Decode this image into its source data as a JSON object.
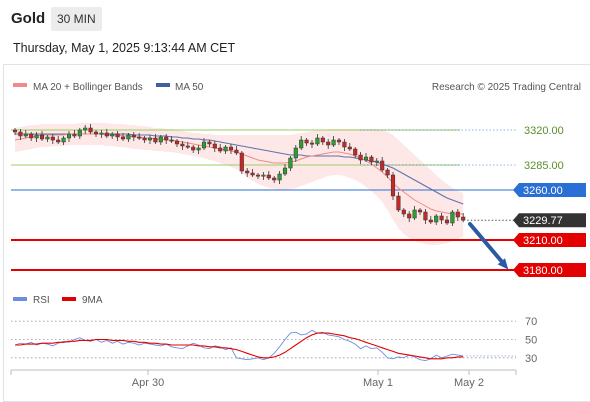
{
  "header": {
    "title": "Gold",
    "timeframe": "30 MIN",
    "timestamp": "Thursday, May 1, 2025 9:13:44 AM CET"
  },
  "legend": {
    "ma20": "MA 20 + Bollinger Bands",
    "ma50": "MA 50",
    "rsi": "RSI",
    "ma9": "9MA"
  },
  "attribution": "Research © 2025 Trading Central",
  "colors": {
    "ma20": "#f08a8a",
    "ma50": "#3f5f9e",
    "band": "#fde3e3",
    "resistance": "#9ccc65",
    "pivot": "#2a6fd6",
    "support": "#e30000",
    "last": "#333333",
    "up": "#2e9d32",
    "down": "#c62828",
    "arrow": "#2b5aa3",
    "rsi": "#6b8ee0",
    "rsi_ma": "#e30000"
  },
  "chart_data": {
    "type": "candlestick",
    "ylim": [
      3160,
      3340
    ],
    "x_labels": [
      "Apr 30",
      "May 1",
      "May 2"
    ],
    "levels": [
      {
        "label": "3320.00",
        "value": 3320,
        "kind": "resistance",
        "style": "solid"
      },
      {
        "label": "3285.00",
        "value": 3285,
        "kind": "resistance",
        "style": "solid"
      },
      {
        "label": "3260.00",
        "value": 3260,
        "kind": "pivot",
        "style": "solid"
      },
      {
        "label": "3229.77",
        "value": 3229.77,
        "kind": "last",
        "style": "dotted"
      },
      {
        "label": "3210.00",
        "value": 3210,
        "kind": "support",
        "style": "solid"
      },
      {
        "label": "3180.00",
        "value": 3180,
        "kind": "support",
        "style": "solid"
      }
    ],
    "close": [
      3318,
      3314,
      3316,
      3312,
      3315,
      3311,
      3313,
      3310,
      3308,
      3312,
      3316,
      3314,
      3320,
      3322,
      3318,
      3316,
      3317,
      3314,
      3316,
      3313,
      3311,
      3315,
      3313,
      3312,
      3310,
      3312,
      3308,
      3313,
      3310,
      3309,
      3306,
      3304,
      3303,
      3300,
      3302,
      3308,
      3306,
      3302,
      3299,
      3303,
      3300,
      3297,
      3279,
      3277,
      3275,
      3274,
      3275,
      3272,
      3270,
      3276,
      3282,
      3292,
      3302,
      3310,
      3307,
      3306,
      3312,
      3308,
      3305,
      3310,
      3308,
      3303,
      3301,
      3295,
      3290,
      3293,
      3288,
      3289,
      3280,
      3275,
      3254,
      3240,
      3236,
      3232,
      3240,
      3238,
      3230,
      3228,
      3234,
      3230,
      3227,
      3238,
      3233,
      3229.77
    ],
    "ma20": [
      3310,
      3311,
      3312,
      3313,
      3314,
      3315,
      3315,
      3315,
      3315,
      3315,
      3316,
      3316,
      3316,
      3316,
      3316,
      3316,
      3316,
      3315,
      3315,
      3315,
      3314,
      3314,
      3313,
      3313,
      3312,
      3312,
      3311,
      3311,
      3310,
      3310,
      3309,
      3308,
      3307,
      3306,
      3305,
      3304,
      3303,
      3302,
      3301,
      3300,
      3299,
      3298,
      3296,
      3294,
      3292,
      3290,
      3289,
      3288,
      3287,
      3287,
      3287,
      3288,
      3289,
      3291,
      3293,
      3294,
      3295,
      3296,
      3297,
      3298,
      3298,
      3297,
      3296,
      3294,
      3292,
      3289,
      3286,
      3282,
      3278,
      3273,
      3267,
      3262,
      3258,
      3254,
      3250,
      3247,
      3244,
      3241,
      3239,
      3238,
      3237,
      3236,
      3236,
      3236
    ],
    "bb_upper": [
      3322,
      3323,
      3324,
      3325,
      3325,
      3326,
      3326,
      3326,
      3326,
      3326,
      3326,
      3326,
      3327,
      3327,
      3327,
      3327,
      3327,
      3327,
      3326,
      3326,
      3326,
      3325,
      3325,
      3324,
      3324,
      3323,
      3322,
      3322,
      3321,
      3321,
      3320,
      3319,
      3318,
      3317,
      3317,
      3316,
      3316,
      3315,
      3315,
      3315,
      3315,
      3315,
      3315,
      3315,
      3315,
      3315,
      3315,
      3315,
      3315,
      3315,
      3315,
      3315,
      3316,
      3317,
      3318,
      3319,
      3320,
      3320,
      3321,
      3321,
      3321,
      3321,
      3321,
      3321,
      3321,
      3321,
      3321,
      3321,
      3320,
      3318,
      3315,
      3310,
      3305,
      3300,
      3295,
      3290,
      3285,
      3280,
      3275,
      3270,
      3266,
      3262,
      3259,
      3257
    ],
    "bb_lower": [
      3298,
      3299,
      3300,
      3301,
      3302,
      3303,
      3303,
      3304,
      3304,
      3304,
      3305,
      3305,
      3305,
      3305,
      3305,
      3305,
      3305,
      3304,
      3304,
      3303,
      3303,
      3302,
      3301,
      3301,
      3300,
      3300,
      3299,
      3299,
      3298,
      3298,
      3297,
      3296,
      3295,
      3294,
      3293,
      3292,
      3290,
      3289,
      3287,
      3285,
      3283,
      3281,
      3277,
      3273,
      3269,
      3266,
      3264,
      3262,
      3261,
      3260,
      3260,
      3261,
      3262,
      3264,
      3266,
      3268,
      3270,
      3272,
      3274,
      3275,
      3275,
      3274,
      3272,
      3270,
      3267,
      3263,
      3259,
      3254,
      3248,
      3240,
      3230,
      3222,
      3216,
      3212,
      3209,
      3207,
      3206,
      3205,
      3205,
      3206,
      3207,
      3209,
      3211,
      3214
    ],
    "ma50": [
      3316,
      3316,
      3316,
      3316,
      3316,
      3316,
      3316,
      3316,
      3316,
      3316,
      3316,
      3316,
      3316,
      3316,
      3316,
      3316,
      3316,
      3316,
      3316,
      3316,
      3316,
      3316,
      3315,
      3315,
      3315,
      3315,
      3314,
      3314,
      3314,
      3313,
      3313,
      3312,
      3312,
      3311,
      3311,
      3310,
      3310,
      3309,
      3308,
      3307,
      3306,
      3305,
      3304,
      3303,
      3302,
      3301,
      3300,
      3299,
      3298,
      3297,
      3296,
      3295,
      3295,
      3295,
      3294,
      3294,
      3294,
      3294,
      3294,
      3294,
      3294,
      3293,
      3293,
      3292,
      3291,
      3290,
      3289,
      3288,
      3286,
      3284,
      3282,
      3279,
      3276,
      3273,
      3270,
      3267,
      3264,
      3261,
      3258,
      3255,
      3252,
      3250,
      3248,
      3246
    ],
    "rsi": {
      "ticks": [
        "70",
        "50",
        "30"
      ],
      "ylim": [
        20,
        80
      ],
      "rsi": [
        44,
        46,
        45,
        47,
        44,
        46,
        45,
        43,
        46,
        48,
        47,
        50,
        52,
        49,
        48,
        50,
        47,
        49,
        46,
        48,
        45,
        47,
        46,
        44,
        46,
        45,
        44,
        43,
        45,
        42,
        41,
        40,
        43,
        46,
        44,
        41,
        40,
        43,
        42,
        39,
        41,
        30,
        29,
        28,
        29,
        30,
        28,
        30,
        35,
        42,
        50,
        57,
        58,
        55,
        56,
        60,
        57,
        58,
        55,
        54,
        53,
        50,
        48,
        45,
        40,
        43,
        40,
        41,
        36,
        30,
        29,
        31,
        30,
        33,
        31,
        28,
        27,
        29,
        33,
        30,
        32,
        34,
        33,
        32
      ],
      "ma9": [
        44,
        44,
        45,
        45,
        45,
        46,
        46,
        46,
        47,
        47,
        48,
        48,
        49,
        49,
        49,
        50,
        50,
        50,
        49,
        49,
        49,
        48,
        48,
        47,
        47,
        46,
        46,
        45,
        45,
        44,
        44,
        44,
        44,
        44,
        43,
        43,
        42,
        42,
        41,
        41,
        40,
        39,
        37,
        35,
        33,
        31,
        30,
        30,
        31,
        33,
        36,
        40,
        44,
        48,
        52,
        55,
        57,
        57,
        57,
        56,
        55,
        54,
        52,
        51,
        49,
        47,
        45,
        43,
        41,
        39,
        37,
        35,
        34,
        33,
        32,
        31,
        30,
        29,
        29,
        29,
        30,
        30,
        31,
        31
      ]
    }
  }
}
